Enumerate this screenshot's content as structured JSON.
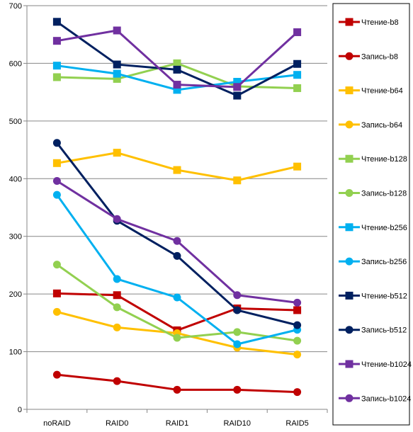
{
  "chart_data": {
    "type": "line",
    "categories": [
      "noRAID",
      "RAID0",
      "RAID1",
      "RAID10",
      "RAID5"
    ],
    "ylim": [
      0,
      700
    ],
    "yticks": [
      0,
      100,
      200,
      300,
      400,
      500,
      600,
      700
    ],
    "grid": "horizontal",
    "legend_position": "right",
    "series": [
      {
        "name": "Чтение-b8",
        "color": "#C00000",
        "marker": "square",
        "values": [
          201,
          198,
          137,
          175,
          172
        ]
      },
      {
        "name": "Запись-b8",
        "color": "#C00000",
        "marker": "circle",
        "values": [
          60,
          49,
          34,
          34,
          30
        ]
      },
      {
        "name": "Чтение-b64",
        "color": "#FFC000",
        "marker": "square",
        "values": [
          427,
          445,
          415,
          397,
          421
        ]
      },
      {
        "name": "Запись-b64",
        "color": "#FFC000",
        "marker": "circle",
        "values": [
          169,
          142,
          132,
          107,
          95
        ]
      },
      {
        "name": "Чтение-b128",
        "color": "#92D050",
        "marker": "square",
        "values": [
          576,
          573,
          600,
          560,
          557
        ]
      },
      {
        "name": "Запись-b128",
        "color": "#92D050",
        "marker": "circle",
        "values": [
          251,
          177,
          124,
          134,
          119
        ]
      },
      {
        "name": "Чтение-b256",
        "color": "#00B0F0",
        "marker": "square",
        "values": [
          596,
          582,
          554,
          568,
          580
        ]
      },
      {
        "name": "Запись-b256",
        "color": "#00B0F0",
        "marker": "circle",
        "values": [
          372,
          226,
          194,
          113,
          138
        ]
      },
      {
        "name": "Чтение-b512",
        "color": "#002060",
        "marker": "square",
        "values": [
          672,
          598,
          589,
          544,
          599
        ]
      },
      {
        "name": "Запись-b512",
        "color": "#002060",
        "marker": "circle",
        "values": [
          462,
          327,
          266,
          172,
          146
        ]
      },
      {
        "name": "Чтение-b1024",
        "color": "#7030A0",
        "marker": "square",
        "values": [
          639,
          657,
          563,
          559,
          654
        ]
      },
      {
        "name": "Запись-b1024",
        "color": "#7030A0",
        "marker": "circle",
        "values": [
          396,
          330,
          292,
          198,
          185
        ]
      }
    ]
  }
}
